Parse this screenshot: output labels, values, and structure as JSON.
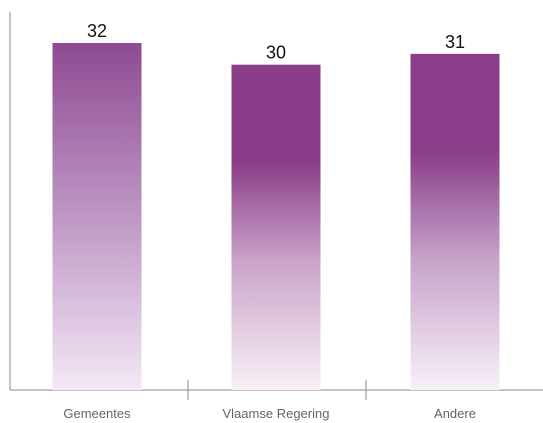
{
  "chart_data": {
    "type": "bar",
    "title": "",
    "xlabel": "",
    "ylabel": "",
    "categories": [
      "Gemeentes",
      "Vlaamse Regering",
      "Andere"
    ],
    "values": [
      32,
      30,
      31
    ],
    "ylim": [
      0,
      33
    ],
    "grid": false,
    "colors": {
      "Gemeentes": {
        "top": "#8e4a92",
        "mid": "#b98fc0",
        "bottom": "#f3e8f5"
      },
      "Vlaamse Regering": {
        "top": "#8a3d89",
        "mid": "#c9a3c8",
        "bottom": "#f8f0f6"
      },
      "Andere": {
        "top": "#8b3f8a",
        "mid": "#c5a0c8",
        "bottom": "#f7f1f8"
      }
    },
    "axis_color": "#8a8a8a"
  }
}
